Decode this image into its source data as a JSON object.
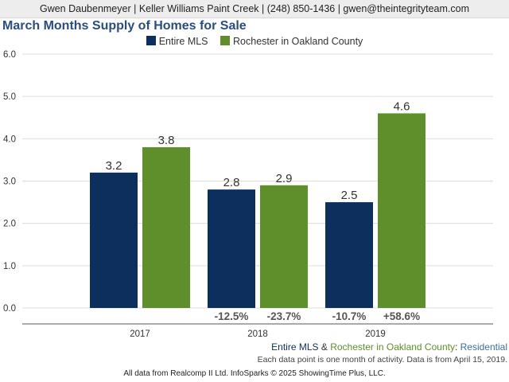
{
  "header": {
    "contact_line": "Gwen Daubenmeyer | Keller Williams Paint Creek | (248) 850-1436 | gwen@theintegrityteam.com"
  },
  "chart_data": {
    "type": "bar",
    "title": "March Months Supply of Homes for Sale",
    "categories": [
      "2017",
      "2018",
      "2019"
    ],
    "series": [
      {
        "name": "Entire MLS",
        "color": "#0d2f5e",
        "values": [
          3.2,
          2.8,
          2.5
        ],
        "labels": [
          "3.2",
          "2.8",
          "2.5"
        ]
      },
      {
        "name": "Rochester in Oakland County",
        "color": "#5e8f2b",
        "values": [
          3.8,
          2.9,
          4.6
        ],
        "labels": [
          "3.8",
          "2.9",
          "4.6"
        ]
      }
    ],
    "percent_changes": [
      [
        "",
        ""
      ],
      [
        "-12.5%",
        "-23.7%"
      ],
      [
        "-10.7%",
        "+58.6%"
      ]
    ],
    "ylim": [
      0,
      6
    ],
    "yticks": [
      "0.0",
      "1.0",
      "2.0",
      "3.0",
      "4.0",
      "5.0",
      "6.0"
    ],
    "grid": true,
    "legend_position": "top-center"
  },
  "footer": {
    "series_a": "Entire MLS",
    "amp": " & ",
    "series_b": "Rochester in Oakland County",
    "colon": ": ",
    "property_type": "Residential",
    "note": "Each data point is one month of activity. Data is from April 15, 2019.",
    "credit": "All data from Realcomp II Ltd. InfoSparks © 2025 ShowingTime Plus, LLC."
  },
  "colors": {
    "title": "#2a4d7f",
    "series_a_text": "#0d2f5e",
    "series_b_text": "#5e8f2b",
    "property_type_text": "#3f6f9f"
  }
}
